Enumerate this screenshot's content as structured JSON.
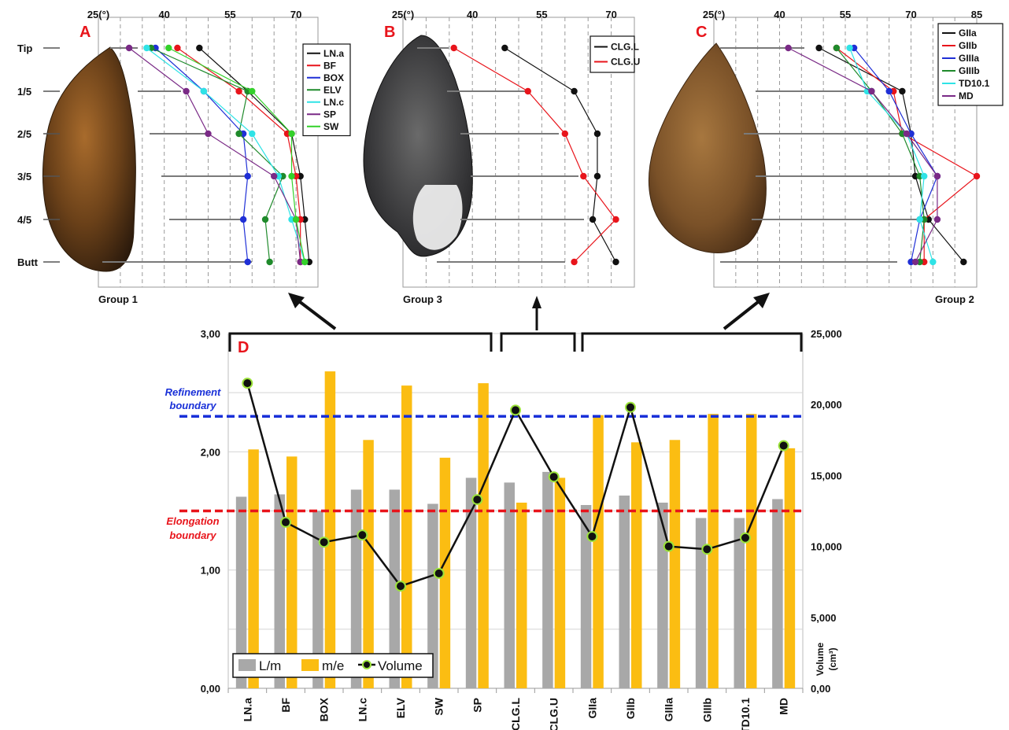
{
  "colors": {
    "black": "#111111",
    "red": "#e8141b",
    "blue": "#1f2fd6",
    "green": "#1f8a2b",
    "cyan": "#2fe3e6",
    "purple": "#7a2a86",
    "lime": "#33d12a",
    "gray_bar": "#a8a8a8",
    "orange_bar": "#fbbd12",
    "refine": "#1930d8",
    "elong": "#e8141b"
  },
  "chart_data": [
    {
      "panel": "A",
      "type": "line",
      "group_label": "Group 1",
      "x_tick_labels": [
        "25(°)",
        "40",
        "55",
        "70"
      ],
      "x_ticks": [
        25,
        40,
        55,
        70
      ],
      "xlim": [
        25,
        75
      ],
      "y_categories": [
        "Tip",
        "1/5",
        "2/5",
        "3/5",
        "4/5",
        "Butt"
      ],
      "legend": [
        "LN.a",
        "BF",
        "BOX",
        "ELV",
        "LN.c",
        "SP",
        "SW"
      ],
      "series": [
        {
          "name": "LN.a",
          "color": "black",
          "values": [
            48,
            59,
            69,
            71,
            72,
            73
          ]
        },
        {
          "name": "BF",
          "color": "red",
          "values": [
            43,
            57,
            68,
            70,
            71,
            71
          ]
        },
        {
          "name": "BOX",
          "color": "blue",
          "values": [
            38,
            49,
            58,
            59,
            58,
            59
          ]
        },
        {
          "name": "ELV",
          "color": "green",
          "values": [
            37,
            59,
            57,
            67,
            63,
            64
          ]
        },
        {
          "name": "LN.c",
          "color": "cyan",
          "values": [
            36,
            49,
            60,
            66,
            69,
            72
          ]
        },
        {
          "name": "SP",
          "color": "purple",
          "values": [
            32,
            45,
            50,
            65,
            70,
            71
          ]
        },
        {
          "name": "SW",
          "color": "lime",
          "values": [
            41,
            60,
            69,
            69,
            70,
            72
          ]
        }
      ]
    },
    {
      "panel": "B",
      "type": "line",
      "group_label": "Group 3",
      "x_tick_labels": [
        "25(°)",
        "40",
        "55",
        "70"
      ],
      "x_ticks": [
        25,
        40,
        55,
        70
      ],
      "xlim": [
        25,
        75
      ],
      "legend": [
        "CLG.L",
        "CLG.U"
      ],
      "series": [
        {
          "name": "CLG.L",
          "color": "black",
          "values": [
            47,
            62,
            67,
            67,
            66,
            71
          ]
        },
        {
          "name": "CLG.U",
          "color": "red",
          "values": [
            36,
            52,
            60,
            64,
            71,
            62
          ]
        }
      ]
    },
    {
      "panel": "C",
      "type": "line",
      "group_label": "Group 2",
      "x_tick_labels": [
        "25(°)",
        "40",
        "55",
        "70",
        "85"
      ],
      "x_ticks": [
        25,
        40,
        55,
        70,
        85
      ],
      "xlim": [
        25,
        85
      ],
      "legend": [
        "GIIa",
        "GIIb",
        "GIIIa",
        "GIIIb",
        "TD10.1",
        "MD"
      ],
      "series": [
        {
          "name": "GIIa",
          "color": "black",
          "values": [
            49,
            68,
            70,
            71,
            74,
            82
          ]
        },
        {
          "name": "GIIb",
          "color": "red",
          "values": [
            53,
            66,
            68,
            85,
            73,
            73
          ]
        },
        {
          "name": "GIIIa",
          "color": "blue",
          "values": [
            57,
            65,
            70,
            76,
            72,
            70
          ]
        },
        {
          "name": "GIIIb",
          "color": "green",
          "values": [
            53,
            61,
            68,
            72,
            73,
            72
          ]
        },
        {
          "name": "TD10.1",
          "color": "cyan",
          "values": [
            56,
            60,
            69,
            73,
            72,
            75
          ]
        },
        {
          "name": "MD",
          "color": "purple",
          "values": [
            42,
            61,
            69,
            76,
            76,
            71
          ]
        }
      ]
    },
    {
      "panel": "D",
      "type": "bar",
      "categories": [
        "LN.a",
        "BF",
        "BOX",
        "LN.c",
        "ELV",
        "SW",
        "SP",
        "CLG.L",
        "CLG.U",
        "GIIa",
        "GIIb",
        "GIIIa",
        "GIIIb",
        "TD10.1",
        "MD"
      ],
      "series": [
        {
          "name": "L/m",
          "axis": "left",
          "values": [
            1.62,
            1.64,
            1.5,
            1.68,
            1.68,
            1.56,
            1.78,
            1.74,
            1.83,
            1.55,
            1.63,
            1.57,
            1.44,
            1.44,
            1.6
          ]
        },
        {
          "name": "m/e",
          "axis": "left",
          "values": [
            2.02,
            1.96,
            2.68,
            2.1,
            2.56,
            1.95,
            2.58,
            1.57,
            1.78,
            2.31,
            2.08,
            2.1,
            2.32,
            2.32,
            2.03
          ]
        },
        {
          "name": "Volume",
          "axis": "right",
          "type": "line",
          "values": [
            21500,
            11700,
            10300,
            10800,
            7200,
            8100,
            13300,
            19600,
            14900,
            10700,
            19800,
            10000,
            9800,
            10600,
            17100
          ]
        }
      ],
      "left_axis": {
        "ylim": [
          0,
          3
        ],
        "tick_labels": [
          "0,00",
          "1,00",
          "2,00",
          "3,00"
        ],
        "ticks": [
          0,
          1,
          2,
          3
        ]
      },
      "right_axis": {
        "ylim": [
          0,
          25000
        ],
        "tick_labels": [
          "0,00",
          "5,000",
          "10,000",
          "15,000",
          "20,000",
          "25,000"
        ],
        "ticks": [
          0,
          5000,
          10000,
          15000,
          20000,
          25000
        ],
        "label_line1": "Volume",
        "label_line2": "(cm³)"
      },
      "reference_lines": [
        {
          "label_line1": "Refinement",
          "label_line2": "boundary",
          "value": 2.3,
          "color": "refine"
        },
        {
          "label_line1": "Elongation",
          "label_line2": "boundary",
          "value": 1.5,
          "color": "elong"
        }
      ],
      "legend": [
        "L/m",
        "m/e",
        "Volume"
      ]
    }
  ]
}
